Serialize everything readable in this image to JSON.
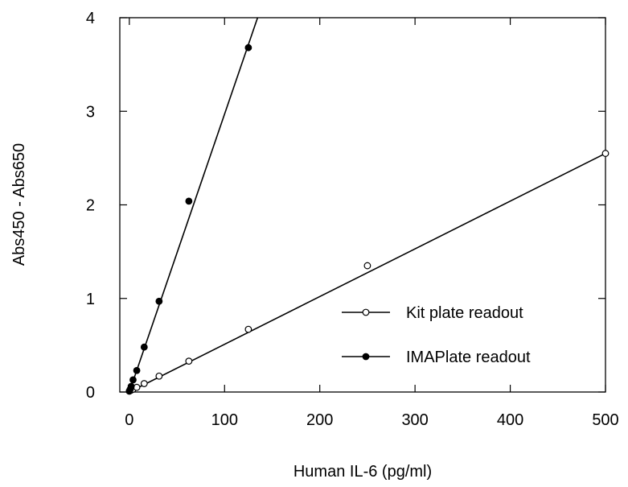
{
  "chart_data": {
    "type": "scatter",
    "title": "",
    "xlabel": "Human IL-6 (pg/ml)",
    "ylabel": "Abs450 - Abs650",
    "xlim": [
      -10,
      500
    ],
    "ylim": [
      0,
      4
    ],
    "x_ticks": [
      0,
      100,
      200,
      300,
      400,
      500
    ],
    "y_ticks": [
      0,
      1,
      2,
      3,
      4
    ],
    "x_tick_labels": [
      "0",
      "100",
      "200",
      "300",
      "400",
      "500"
    ],
    "y_tick_labels": [
      "0",
      "1",
      "2",
      "3",
      "4"
    ],
    "grid": false,
    "legend_position": "bottom-right",
    "series": [
      {
        "name": "Kit plate readout",
        "marker": "open-circle",
        "x": [
          0,
          1.95,
          3.9,
          7.8,
          15.6,
          31.25,
          62.5,
          125,
          250,
          500
        ],
        "y": [
          0.01,
          0.02,
          0.03,
          0.05,
          0.09,
          0.17,
          0.33,
          0.67,
          1.35,
          2.55
        ],
        "fit": {
          "slope": 0.0051,
          "intercept": 0.0
        }
      },
      {
        "name": "IMAPlate readout",
        "marker": "filled-circle",
        "x": [
          0,
          0.98,
          1.95,
          3.9,
          7.8,
          15.6,
          31.25,
          62.5,
          125
        ],
        "y": [
          0.01,
          0.03,
          0.06,
          0.13,
          0.23,
          0.48,
          0.97,
          2.04,
          3.68
        ],
        "fit": {
          "slope": 0.0297,
          "intercept": 0.0
        }
      }
    ]
  }
}
